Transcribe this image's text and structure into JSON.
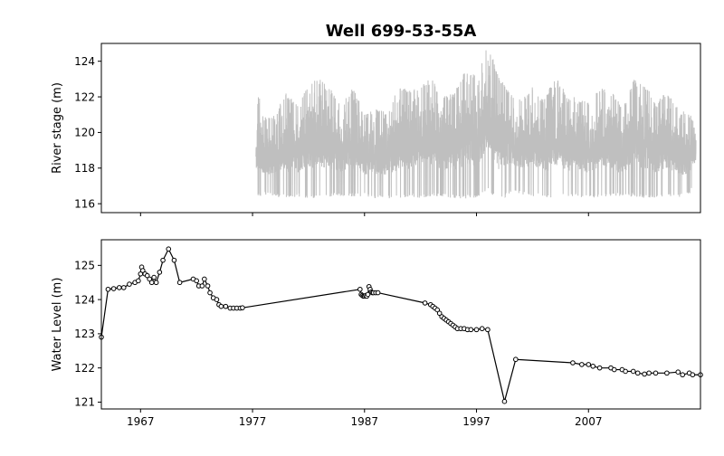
{
  "chart_data": [
    {
      "type": "line",
      "title": "Well 699-53-55A",
      "xlabel": "",
      "ylabel": "River stage (m)",
      "xlim": [
        1963.5,
        2017.0
      ],
      "ylim": [
        115.5,
        125.0
      ],
      "yticks": [
        116,
        118,
        120,
        122,
        124
      ],
      "xticks": [
        1967,
        1977,
        1987,
        1997,
        2007
      ],
      "x_tick_labels_visible": false,
      "color": "#bfbfbf",
      "grid": false,
      "series": [
        {
          "x_start": 1977.3,
          "x_end": 2016.6,
          "cycles_per_year": 10,
          "envelope": [
            [
              1977.3,
              116.6,
              120.6
            ],
            [
              1977.6,
              116.4,
              122.6
            ],
            [
              1978,
              116.5,
              120.8
            ],
            [
              1979,
              116.4,
              121.0
            ],
            [
              1980,
              116.3,
              122.3
            ],
            [
              1981,
              116.4,
              121.5
            ],
            [
              1982,
              116.3,
              122.8
            ],
            [
              1983,
              116.3,
              123.0
            ],
            [
              1984,
              116.4,
              122.4
            ],
            [
              1985,
              116.4,
              121.6
            ],
            [
              1986,
              116.4,
              122.6
            ],
            [
              1987,
              116.4,
              121.0
            ],
            [
              1988,
              116.3,
              121.4
            ],
            [
              1989,
              116.3,
              121.2
            ],
            [
              1990,
              116.3,
              122.6
            ],
            [
              1991,
              116.4,
              122.4
            ],
            [
              1992,
              116.3,
              122.8
            ],
            [
              1993,
              116.4,
              123.0
            ],
            [
              1994,
              116.4,
              122.0
            ],
            [
              1995,
              116.3,
              122.2
            ],
            [
              1996,
              116.3,
              123.5
            ],
            [
              1997,
              116.3,
              123.2
            ],
            [
              1998,
              116.8,
              125.1
            ],
            [
              1999,
              116.1,
              123.1
            ],
            [
              2000,
              116.6,
              122.3
            ],
            [
              2001,
              116.5,
              121.8
            ],
            [
              2002,
              116.4,
              122.6
            ],
            [
              2003,
              116.4,
              121.8
            ],
            [
              2004,
              116.3,
              123.2
            ],
            [
              2005,
              116.4,
              122.2
            ],
            [
              2006,
              116.4,
              121.9
            ],
            [
              2007,
              116.3,
              121.7
            ],
            [
              2008,
              116.4,
              122.5
            ],
            [
              2009,
              116.4,
              122.6
            ],
            [
              2010,
              116.4,
              121.3
            ],
            [
              2011,
              116.4,
              123.0
            ],
            [
              2012,
              116.3,
              122.8
            ],
            [
              2013,
              116.3,
              121.7
            ],
            [
              2014,
              116.4,
              122.3
            ],
            [
              2015,
              116.3,
              121.4
            ],
            [
              2016,
              116.5,
              121.0
            ],
            [
              2016.6,
              117.6,
              120.8
            ]
          ]
        }
      ]
    },
    {
      "type": "line",
      "xlabel": "",
      "ylabel": "Water Level (m)",
      "xlim": [
        1963.5,
        2017.0
      ],
      "ylim": [
        120.8,
        125.75
      ],
      "yticks": [
        121,
        122,
        123,
        124,
        125
      ],
      "xticks": [
        1967,
        1977,
        1987,
        1997,
        2007
      ],
      "x_tick_labels": [
        "1967",
        "1977",
        "1987",
        "1997",
        "2007"
      ],
      "marker": "circle",
      "color": "#000000",
      "grid": false,
      "series": [
        {
          "x": [
            1963.5,
            1964.1,
            1964.6,
            1965.1,
            1965.5,
            1966.0,
            1966.5,
            1966.8,
            1967.0,
            1967.1,
            1967.2,
            1967.4,
            1967.6,
            1967.8,
            1968.0,
            1968.2,
            1968.4,
            1968.7,
            1969.0,
            1969.5,
            1970.0,
            1970.5,
            1971.7,
            1972.0,
            1972.2,
            1972.5,
            1972.7,
            1973.0,
            1973.2,
            1973.5,
            1973.8,
            1974.0,
            1974.2,
            1974.6,
            1975.0,
            1975.3,
            1975.6,
            1975.9,
            1976.1,
            1986.6,
            1986.7,
            1986.8,
            1986.9,
            1987.0,
            1987.1,
            1987.2,
            1987.3,
            1987.4,
            1987.5,
            1987.6,
            1987.7,
            1987.8,
            1988.0,
            1988.2,
            1992.4,
            1992.9,
            1993.1,
            1993.3,
            1993.5,
            1993.7,
            1993.9,
            1994.1,
            1994.3,
            1994.5,
            1994.7,
            1994.9,
            1995.1,
            1995.3,
            1995.6,
            1995.9,
            1996.2,
            1996.5,
            1997.0,
            1997.5,
            1998.0,
            1999.5,
            2000.5,
            2005.6,
            2006.4,
            2007.0,
            2007.4,
            2008.0,
            2009.0,
            2009.3,
            2010.0,
            2010.3,
            2011.0,
            2011.4,
            2012.0,
            2012.4,
            2013.0,
            2014.0,
            2015.0,
            2015.4,
            2016.0,
            2016.3,
            2017.0
          ],
          "y": [
            122.9,
            124.3,
            124.32,
            124.35,
            124.35,
            124.45,
            124.5,
            124.55,
            124.75,
            124.95,
            124.85,
            124.75,
            124.7,
            124.6,
            124.5,
            124.65,
            124.5,
            124.8,
            125.15,
            125.48,
            125.15,
            124.5,
            124.6,
            124.55,
            124.4,
            124.4,
            124.6,
            124.4,
            124.2,
            124.05,
            124.0,
            123.85,
            123.8,
            123.8,
            123.75,
            123.75,
            123.75,
            123.75,
            123.76,
            124.3,
            124.15,
            124.12,
            124.1,
            124.1,
            124.12,
            124.1,
            124.15,
            124.38,
            124.3,
            124.22,
            124.2,
            124.2,
            124.2,
            124.2,
            123.9,
            123.85,
            123.8,
            123.75,
            123.7,
            123.6,
            123.5,
            123.45,
            123.4,
            123.35,
            123.3,
            123.25,
            123.2,
            123.15,
            123.15,
            123.15,
            123.12,
            123.12,
            123.12,
            123.15,
            123.12,
            121.02,
            122.25,
            122.15,
            122.1,
            122.1,
            122.05,
            122.0,
            122.0,
            121.95,
            121.95,
            121.9,
            121.9,
            121.85,
            121.82,
            121.85,
            121.85,
            121.85,
            121.88,
            121.8,
            121.85,
            121.8,
            121.8
          ]
        }
      ]
    }
  ]
}
